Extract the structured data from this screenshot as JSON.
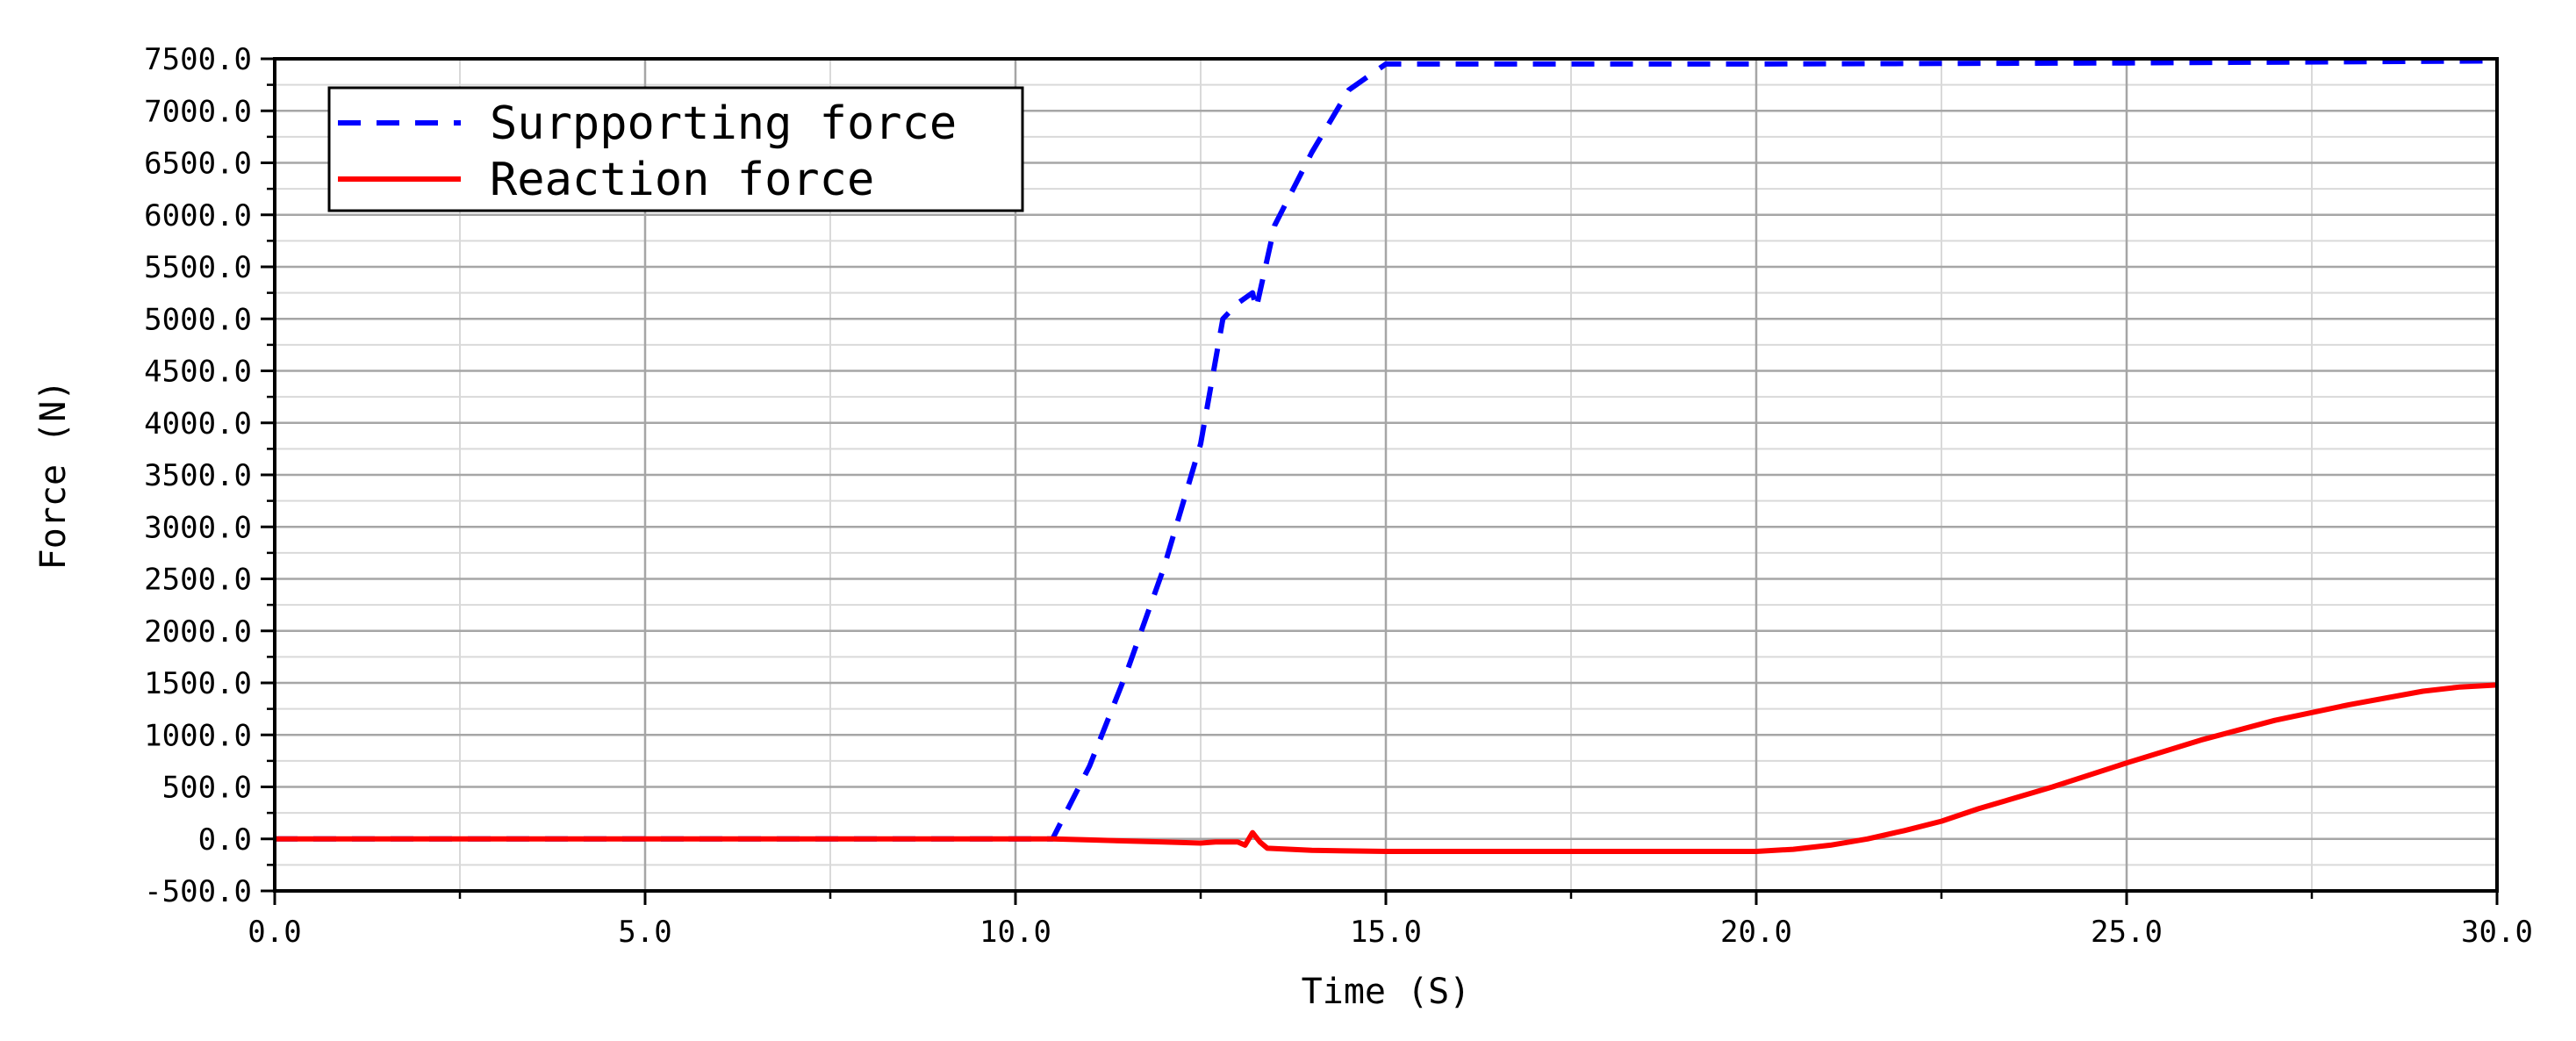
{
  "chart_data": {
    "type": "line",
    "title": "",
    "xlabel": "Time (S)",
    "ylabel": "Force (N)",
    "xlim": [
      0,
      30
    ],
    "ylim": [
      -500,
      7500
    ],
    "x_ticks": [
      0,
      5,
      10,
      15,
      20,
      25,
      30
    ],
    "x_tick_labels": [
      "0.0",
      "5.0",
      "10.0",
      "15.0",
      "20.0",
      "25.0",
      "30.0"
    ],
    "y_ticks": [
      -500,
      0,
      500,
      1000,
      1500,
      2000,
      2500,
      3000,
      3500,
      4000,
      4500,
      5000,
      5500,
      6000,
      6500,
      7000,
      7500
    ],
    "y_tick_labels": [
      "-500.0",
      "0.0",
      "500.0",
      "1000.0",
      "1500.0",
      "2000.0",
      "2500.0",
      "3000.0",
      "3500.0",
      "4000.0",
      "4500.0",
      "5000.0",
      "5500.0",
      "6000.0",
      "6500.0",
      "7000.0",
      "7500.0"
    ],
    "grid": true,
    "legend_position": "top-left",
    "series": [
      {
        "name": "Surpporting force",
        "color": "#0000ff",
        "style": "dashed",
        "x": [
          0,
          10.5,
          11.0,
          11.5,
          12.0,
          12.5,
          12.8,
          13.0,
          13.2,
          13.25,
          13.5,
          14.0,
          14.5,
          15.0,
          20.0,
          25.0,
          30.0
        ],
        "y": [
          0,
          0,
          700,
          1600,
          2600,
          3800,
          5000,
          5150,
          5250,
          5100,
          5900,
          6600,
          7200,
          7450,
          7450,
          7460,
          7480
        ]
      },
      {
        "name": "Reaction force",
        "color": "#ff0000",
        "style": "solid",
        "x": [
          0,
          10.5,
          11.0,
          11.5,
          12.0,
          12.5,
          12.7,
          13.0,
          13.1,
          13.2,
          13.3,
          13.4,
          14.0,
          15.0,
          16.0,
          18.0,
          20.0,
          20.5,
          21.0,
          21.5,
          22.0,
          22.5,
          23.0,
          24.0,
          25.0,
          26.0,
          27.0,
          28.0,
          29.0,
          29.5,
          30.0
        ],
        "y": [
          0,
          0,
          -10,
          -20,
          -30,
          -40,
          -30,
          -30,
          -60,
          60,
          -30,
          -90,
          -110,
          -120,
          -120,
          -120,
          -120,
          -100,
          -60,
          0,
          80,
          170,
          290,
          500,
          730,
          950,
          1140,
          1290,
          1420,
          1460,
          1480
        ]
      }
    ]
  }
}
